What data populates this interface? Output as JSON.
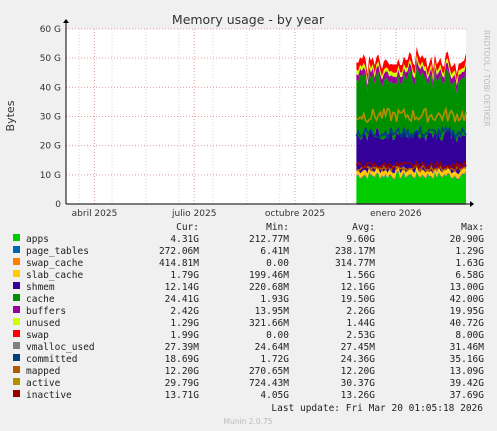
{
  "chart_data": {
    "type": "area",
    "title": "Memory usage - by year",
    "ylabel": "Bytes",
    "side_label": "RRDTOOL / TOBI OETIKER",
    "ylim": [
      0,
      60
    ],
    "y_unit": "G",
    "y_ticks": [
      0,
      10,
      20,
      30,
      40,
      50,
      60
    ],
    "y_tick_labels": [
      "0",
      "10 G",
      "20 G",
      "30 G",
      "40 G",
      "50 G",
      "60 G"
    ],
    "x_tick_labels": [
      "abril 2025",
      "julio 2025",
      "octubre 2025",
      "enero 2026"
    ],
    "x_range": [
      "2025-03-20",
      "2026-03-20"
    ],
    "data_start": "2025-12-10",
    "grid": true,
    "legend_headers": {
      "cur": "Cur:",
      "min": "Min:",
      "avg": "Avg:",
      "max": "Max:"
    },
    "series": [
      {
        "name": "apps",
        "color": "#00CC00",
        "cur": "4.31G",
        "min": "212.77M",
        "avg": "9.60G",
        "max": "20.90G"
      },
      {
        "name": "page_tables",
        "color": "#0066B3",
        "cur": "272.06M",
        "min": "6.41M",
        "avg": "238.17M",
        "max": "1.29G"
      },
      {
        "name": "swap_cache",
        "color": "#FF8000",
        "cur": "414.81M",
        "min": "0.00",
        "avg": "314.77M",
        "max": "1.63G"
      },
      {
        "name": "slab_cache",
        "color": "#FFCC00",
        "cur": "1.79G",
        "min": "199.46M",
        "avg": "1.56G",
        "max": "6.58G"
      },
      {
        "name": "shmem",
        "color": "#330099",
        "cur": "12.14G",
        "min": "220.68M",
        "avg": "12.16G",
        "max": "13.00G"
      },
      {
        "name": "cache",
        "color": "#008F00",
        "cur": "24.41G",
        "min": "1.93G",
        "avg": "19.50G",
        "max": "42.00G"
      },
      {
        "name": "buffers",
        "color": "#990099",
        "cur": "2.42G",
        "min": "13.95M",
        "avg": "2.26G",
        "max": "19.95G"
      },
      {
        "name": "unused",
        "color": "#CCFF00",
        "cur": "1.29G",
        "min": "321.66M",
        "avg": "1.44G",
        "max": "40.72G"
      },
      {
        "name": "swap",
        "color": "#FF0000",
        "cur": "1.99G",
        "min": "0.00",
        "avg": "2.53G",
        "max": "8.00G"
      },
      {
        "name": "vmalloc_used",
        "color": "#808080",
        "cur": "27.39M",
        "min": "24.64M",
        "avg": "27.45M",
        "max": "31.46M"
      },
      {
        "name": "committed",
        "color": "#004080",
        "cur": "18.69G",
        "min": "1.72G",
        "avg": "24.36G",
        "max": "35.16G"
      },
      {
        "name": "mapped",
        "color": "#B35A00",
        "cur": "12.20G",
        "min": "270.65M",
        "avg": "12.20G",
        "max": "13.09G"
      },
      {
        "name": "active",
        "color": "#B38F00",
        "cur": "29.79G",
        "min": "724.43M",
        "avg": "30.37G",
        "max": "39.42G"
      },
      {
        "name": "inactive",
        "color": "#990000",
        "cur": "13.71G",
        "min": "4.05G",
        "avg": "13.26G",
        "max": "37.69G"
      }
    ],
    "last_update": "Last update: Fri Mar 20 01:05:18 2026",
    "footer": "Munin 2.0.75"
  }
}
